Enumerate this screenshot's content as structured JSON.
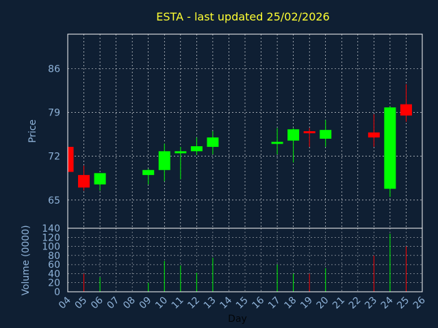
{
  "chart_data": {
    "type": "candlestick",
    "title": "ESTA - last updated 25/02/2026",
    "xlabel": "Day",
    "ylabel": "Price",
    "volume_label": "Volume (0000)",
    "x_ticks": [
      "04",
      "05",
      "06",
      "07",
      "08",
      "09",
      "10",
      "11",
      "12",
      "13",
      "14",
      "15",
      "16",
      "17",
      "18",
      "19",
      "20",
      "21",
      "22",
      "23",
      "24",
      "25",
      "26"
    ],
    "price_ticks": [
      65,
      72,
      79,
      86
    ],
    "price_range": [
      60.5,
      91.5
    ],
    "volume_ticks": [
      0,
      20,
      40,
      60,
      80,
      100,
      120,
      140
    ],
    "volume_range": [
      0,
      140
    ],
    "grid": true,
    "colors": {
      "background": "#0f1f33",
      "plot_border": "#ffffff",
      "grid": "#ffffff",
      "up": "#00ff00",
      "down": "#ff0000",
      "title": "#ffff33",
      "tick": "#8fb3d9"
    },
    "candles": [
      {
        "day": "04",
        "open": 73.5,
        "high": 73.5,
        "low": 69.5,
        "close": 69.5
      },
      {
        "day": "05",
        "open": 69.0,
        "high": 70.5,
        "low": 66.5,
        "close": 67.0
      },
      {
        "day": "06",
        "open": 67.5,
        "high": 69.3,
        "low": 66.5,
        "close": 69.3
      },
      {
        "day": "09",
        "open": 69.0,
        "high": 70.0,
        "low": 67.5,
        "close": 69.8
      },
      {
        "day": "10",
        "open": 69.8,
        "high": 74.0,
        "low": 68.0,
        "close": 72.8
      },
      {
        "day": "11",
        "open": 72.5,
        "high": 73.5,
        "low": 68.3,
        "close": 72.8
      },
      {
        "day": "12",
        "open": 72.8,
        "high": 75.0,
        "low": 72.2,
        "close": 73.6
      },
      {
        "day": "13",
        "open": 73.5,
        "high": 76.0,
        "low": 72.3,
        "close": 75.0
      },
      {
        "day": "17",
        "open": 74.0,
        "high": 76.5,
        "low": 72.3,
        "close": 74.3
      },
      {
        "day": "18",
        "open": 74.5,
        "high": 76.5,
        "low": 71.0,
        "close": 76.3
      },
      {
        "day": "19",
        "open": 76.0,
        "high": 76.5,
        "low": 73.5,
        "close": 75.8
      },
      {
        "day": "20",
        "open": 74.8,
        "high": 77.8,
        "low": 73.5,
        "close": 76.2
      },
      {
        "day": "23",
        "open": 75.8,
        "high": 78.7,
        "low": 73.5,
        "close": 75.0
      },
      {
        "day": "24",
        "open": 66.8,
        "high": 80.0,
        "low": 65.5,
        "close": 79.8
      },
      {
        "day": "25",
        "open": 80.3,
        "high": 83.5,
        "low": 77.5,
        "close": 78.5
      }
    ],
    "volume": [
      {
        "day": "05",
        "value": 40,
        "direction": "down"
      },
      {
        "day": "06",
        "value": 32,
        "direction": "up"
      },
      {
        "day": "09",
        "value": 20,
        "direction": "up"
      },
      {
        "day": "10",
        "value": 68,
        "direction": "up"
      },
      {
        "day": "11",
        "value": 58,
        "direction": "up"
      },
      {
        "day": "12",
        "value": 42,
        "direction": "up"
      },
      {
        "day": "13",
        "value": 75,
        "direction": "up"
      },
      {
        "day": "17",
        "value": 60,
        "direction": "up"
      },
      {
        "day": "18",
        "value": 40,
        "direction": "up"
      },
      {
        "day": "19",
        "value": 40,
        "direction": "down"
      },
      {
        "day": "20",
        "value": 52,
        "direction": "up"
      },
      {
        "day": "23",
        "value": 80,
        "direction": "down"
      },
      {
        "day": "24",
        "value": 128,
        "direction": "up"
      },
      {
        "day": "25",
        "value": 100,
        "direction": "down"
      }
    ]
  }
}
